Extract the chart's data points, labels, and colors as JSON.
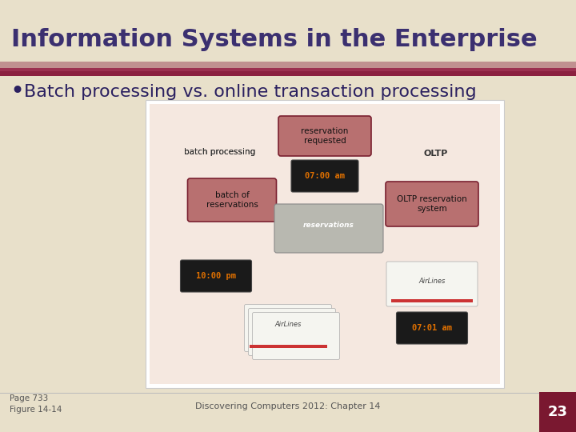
{
  "title": "Information Systems in the Enterprise",
  "bullet": "Batch processing vs. online transaction processing",
  "footer_left": "Page 733\nFigure 14-14",
  "footer_center": "Discovering Computers 2012: Chapter 14",
  "footer_page": "23",
  "bg_color": "#E8E0CA",
  "title_color": "#3B3070",
  "title_bar_top": "#C8A0A0",
  "title_bar_bottom": "#8B2040",
  "bullet_color": "#2A2060",
  "page_num_bg": "#7A1830",
  "page_num_color": "#FFFFFF",
  "diagram_bg": "#FFFFFF",
  "diagram_inner_bg": "#F5E8E0",
  "box_fill": "#B87070",
  "box_edge": "#7A2030",
  "arrow_color": "#7A1830",
  "label_color": "#222222",
  "clock_bg": "#1A1A1A",
  "clock_text": "#E07000",
  "ticket_bg": "#F5F5F0",
  "ticket_edge": "#AAAAAA"
}
